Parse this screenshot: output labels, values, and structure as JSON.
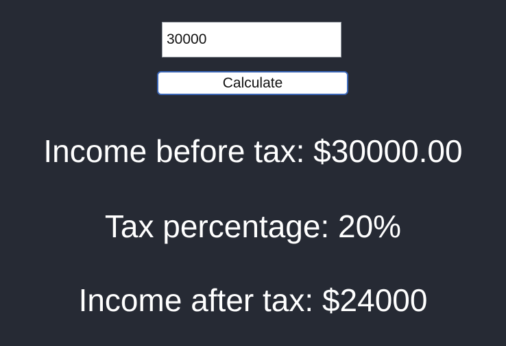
{
  "form": {
    "income_value": "30000",
    "calculate_label": "Calculate"
  },
  "results": {
    "before_tax": "Income before tax: $30000.00",
    "tax_percentage": "Tax percentage: 20%",
    "after_tax": "Income after tax: $24000"
  },
  "colors": {
    "background": "#262a34",
    "button_border": "#3b67b9",
    "text": "#ffffff"
  }
}
